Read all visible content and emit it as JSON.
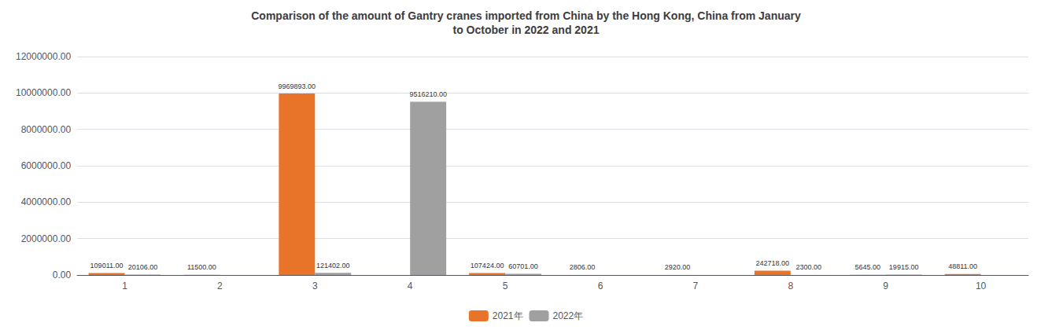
{
  "chart_data": {
    "type": "bar",
    "title": "Comparison of the amount of Gantry cranes imported from China by the Hong Kong, China from January\nto October in 2022 and 2021",
    "categories": [
      "1",
      "2",
      "3",
      "4",
      "5",
      "6",
      "7",
      "8",
      "9",
      "10"
    ],
    "series": [
      {
        "name": "2021年",
        "color": "#E8742A",
        "values": [
          109011,
          11500,
          9969893,
          0,
          107424,
          2806,
          2920,
          242718,
          5645,
          48811
        ],
        "value_labels": [
          "109011.00",
          "11500.00",
          "9969893.00",
          null,
          "107424.00",
          "2806.00",
          "2920.00",
          "242718.00",
          "5645.00",
          "48811.00"
        ]
      },
      {
        "name": "2022年",
        "color": "#A0A0A0",
        "values": [
          20106,
          0,
          121402,
          9516210,
          60701,
          0,
          0,
          2300,
          19915,
          0
        ],
        "value_labels": [
          "20106.00",
          null,
          "121402.00",
          "9516210.00",
          "60701.00",
          null,
          null,
          "2300.00",
          "19915.00",
          null
        ]
      }
    ],
    "ylim": [
      0,
      12000000
    ],
    "yticks": [
      {
        "value": 0,
        "label": "0.00"
      },
      {
        "value": 2000000,
        "label": "2000000.00"
      },
      {
        "value": 4000000,
        "label": "4000000.00"
      },
      {
        "value": 6000000,
        "label": "6000000.00"
      },
      {
        "value": 8000000,
        "label": "8000000.00"
      },
      {
        "value": 10000000,
        "label": "10000000.00"
      },
      {
        "value": 12000000,
        "label": "12000000.00"
      }
    ],
    "grid": true,
    "legend": "bottom",
    "data_labels": true
  }
}
